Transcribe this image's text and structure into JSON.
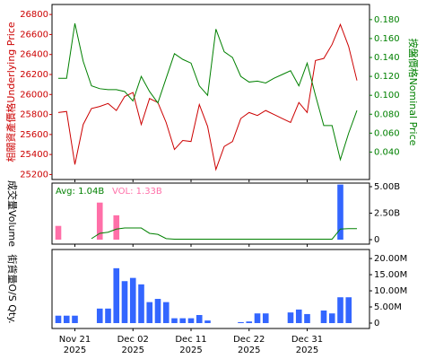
{
  "chart_data": [
    {
      "type": "line",
      "ylabel": "相關資產價格Underlying Price",
      "y2label": "按盤價格Nominal Price",
      "categories": [
        null,
        null,
        [
          "Nov 21",
          "2025"
        ],
        null,
        null,
        null,
        null,
        null,
        null,
        [
          "Dec 02",
          "2025"
        ],
        null,
        null,
        null,
        null,
        null,
        null,
        [
          "Dec 11",
          "2025"
        ],
        null,
        null,
        null,
        null,
        null,
        null,
        [
          "Dec 22",
          "2025"
        ],
        null,
        null,
        null,
        null,
        null,
        null,
        [
          "Dec 31",
          "2025"
        ],
        null,
        null,
        null,
        null,
        null,
        null
      ],
      "ylim": [
        25150,
        26900
      ],
      "yticks": [
        25200,
        25400,
        25600,
        25800,
        26000,
        26200,
        26400,
        26600,
        26800
      ],
      "y2lim": [
        0.011,
        0.196
      ],
      "y2ticks": [
        {
          "value": 0.04,
          "label": "0.040"
        },
        {
          "value": 0.06,
          "label": "0.060"
        },
        {
          "value": 0.08,
          "label": "0.080"
        },
        {
          "value": 0.1,
          "label": "0.100"
        },
        {
          "value": 0.12,
          "label": "0.120"
        },
        {
          "value": 0.14,
          "label": "0.140"
        },
        {
          "value": 0.16,
          "label": "0.160"
        },
        {
          "value": 0.18,
          "label": "0.180"
        }
      ],
      "series": [
        {
          "color": "#cc0000",
          "values": [
            25820,
            25830,
            25300,
            25700,
            25860,
            25880,
            25910,
            25840,
            25980,
            26020,
            25700,
            25960,
            25920,
            25720,
            25450,
            25540,
            25530,
            25900,
            25680,
            25250,
            25480,
            25530,
            25760,
            25820,
            25790,
            25840,
            25800,
            25760,
            25720,
            25920,
            25820,
            26340,
            26360,
            26500,
            26700,
            26480,
            26140
          ]
        },
        {
          "color": "#008000",
          "axis": "y2",
          "values": [
            0.118,
            0.118,
            0.176,
            0.136,
            0.11,
            0.107,
            0.106,
            0.106,
            0.104,
            0.094,
            0.12,
            0.104,
            0.092,
            0.118,
            0.144,
            0.138,
            0.134,
            0.11,
            0.1,
            0.17,
            0.146,
            0.14,
            0.12,
            0.114,
            0.115,
            0.113,
            0.118,
            0.122,
            0.126,
            0.11,
            0.134,
            0.1,
            0.068,
            0.068,
            0.032,
            0.06,
            0.084
          ]
        }
      ]
    },
    {
      "type": "bar",
      "ylabel": "成交量Volume",
      "avg_label": "Avg: 1.04B",
      "avg_color": "#008000",
      "vol_label": "VOL: 1.33B",
      "vol_color": "#ff6fa8",
      "ylim": [
        -0.42,
        5.34
      ],
      "yticks": [
        {
          "value": 0,
          "label": "0"
        },
        {
          "value": 2.5,
          "label": "2.50B"
        },
        {
          "value": 5,
          "label": "5.00B"
        }
      ],
      "values": [
        1.3,
        0,
        0,
        0,
        0,
        3.5,
        0,
        2.3,
        0,
        0,
        0,
        0,
        0,
        0,
        0,
        0,
        0,
        0,
        0,
        0,
        0,
        0,
        0,
        0,
        0,
        0,
        0,
        0,
        0,
        0,
        0,
        0,
        0,
        0,
        5.2,
        0,
        0
      ],
      "bar_colors": [
        "#ff6fa8",
        "#ff6fa8",
        "#ff6fa8",
        "#ff6fa8",
        "#ff6fa8",
        "#ff6fa8",
        "#ff6fa8",
        "#ff6fa8",
        "#ff6fa8",
        "#ff6fa8",
        "#ff6fa8",
        "#ff6fa8",
        "#ff6fa8",
        "#ff6fa8",
        "#ff6fa8",
        "#ff6fa8",
        "#ff6fa8",
        "#ff6fa8",
        "#ff6fa8",
        "#ff6fa8",
        "#ff6fa8",
        "#ff6fa8",
        "#ff6fa8",
        "#ff6fa8",
        "#ff6fa8",
        "#ff6fa8",
        "#ff6fa8",
        "#ff6fa8",
        "#ff6fa8",
        "#ff6fa8",
        "#ff6fa8",
        "#ff6fa8",
        "#ff6fa8",
        "#ff6fa8",
        "#3366ff",
        "#3366ff",
        "#3366ff"
      ],
      "avg_values": [
        null,
        null,
        null,
        null,
        0.1,
        0.6,
        0.7,
        1.0,
        1.1,
        1.1,
        1.1,
        0.6,
        0.5,
        0.1,
        0.05,
        0.05,
        0.05,
        0.05,
        0.05,
        0.05,
        0.05,
        0.05,
        0.05,
        0.05,
        0.05,
        0.05,
        0.05,
        0.05,
        0.05,
        0.05,
        0.05,
        0.05,
        0.05,
        0.05,
        1.0,
        1.04,
        1.04
      ]
    },
    {
      "type": "bar",
      "ylabel": "街貨量O/S Qty.",
      "color": "#3366ff",
      "ylim": [
        -1.67,
        22.8
      ],
      "yticks": [
        {
          "value": 0,
          "label": "0"
        },
        {
          "value": 5,
          "label": "5.00M"
        },
        {
          "value": 10,
          "label": "10.00M"
        },
        {
          "value": 15,
          "label": "15.00M"
        },
        {
          "value": 20,
          "label": "20.00M"
        }
      ],
      "values": [
        2.3,
        2.3,
        2.3,
        0,
        0,
        4.5,
        4.5,
        17,
        13,
        14,
        12,
        6.5,
        7.5,
        6.5,
        1.5,
        1.5,
        1.5,
        2.5,
        0.8,
        0,
        0,
        0,
        0.3,
        0.5,
        3,
        3,
        0,
        0,
        3.3,
        4.2,
        2.8,
        0,
        3.9,
        3,
        8,
        8,
        0
      ]
    }
  ]
}
